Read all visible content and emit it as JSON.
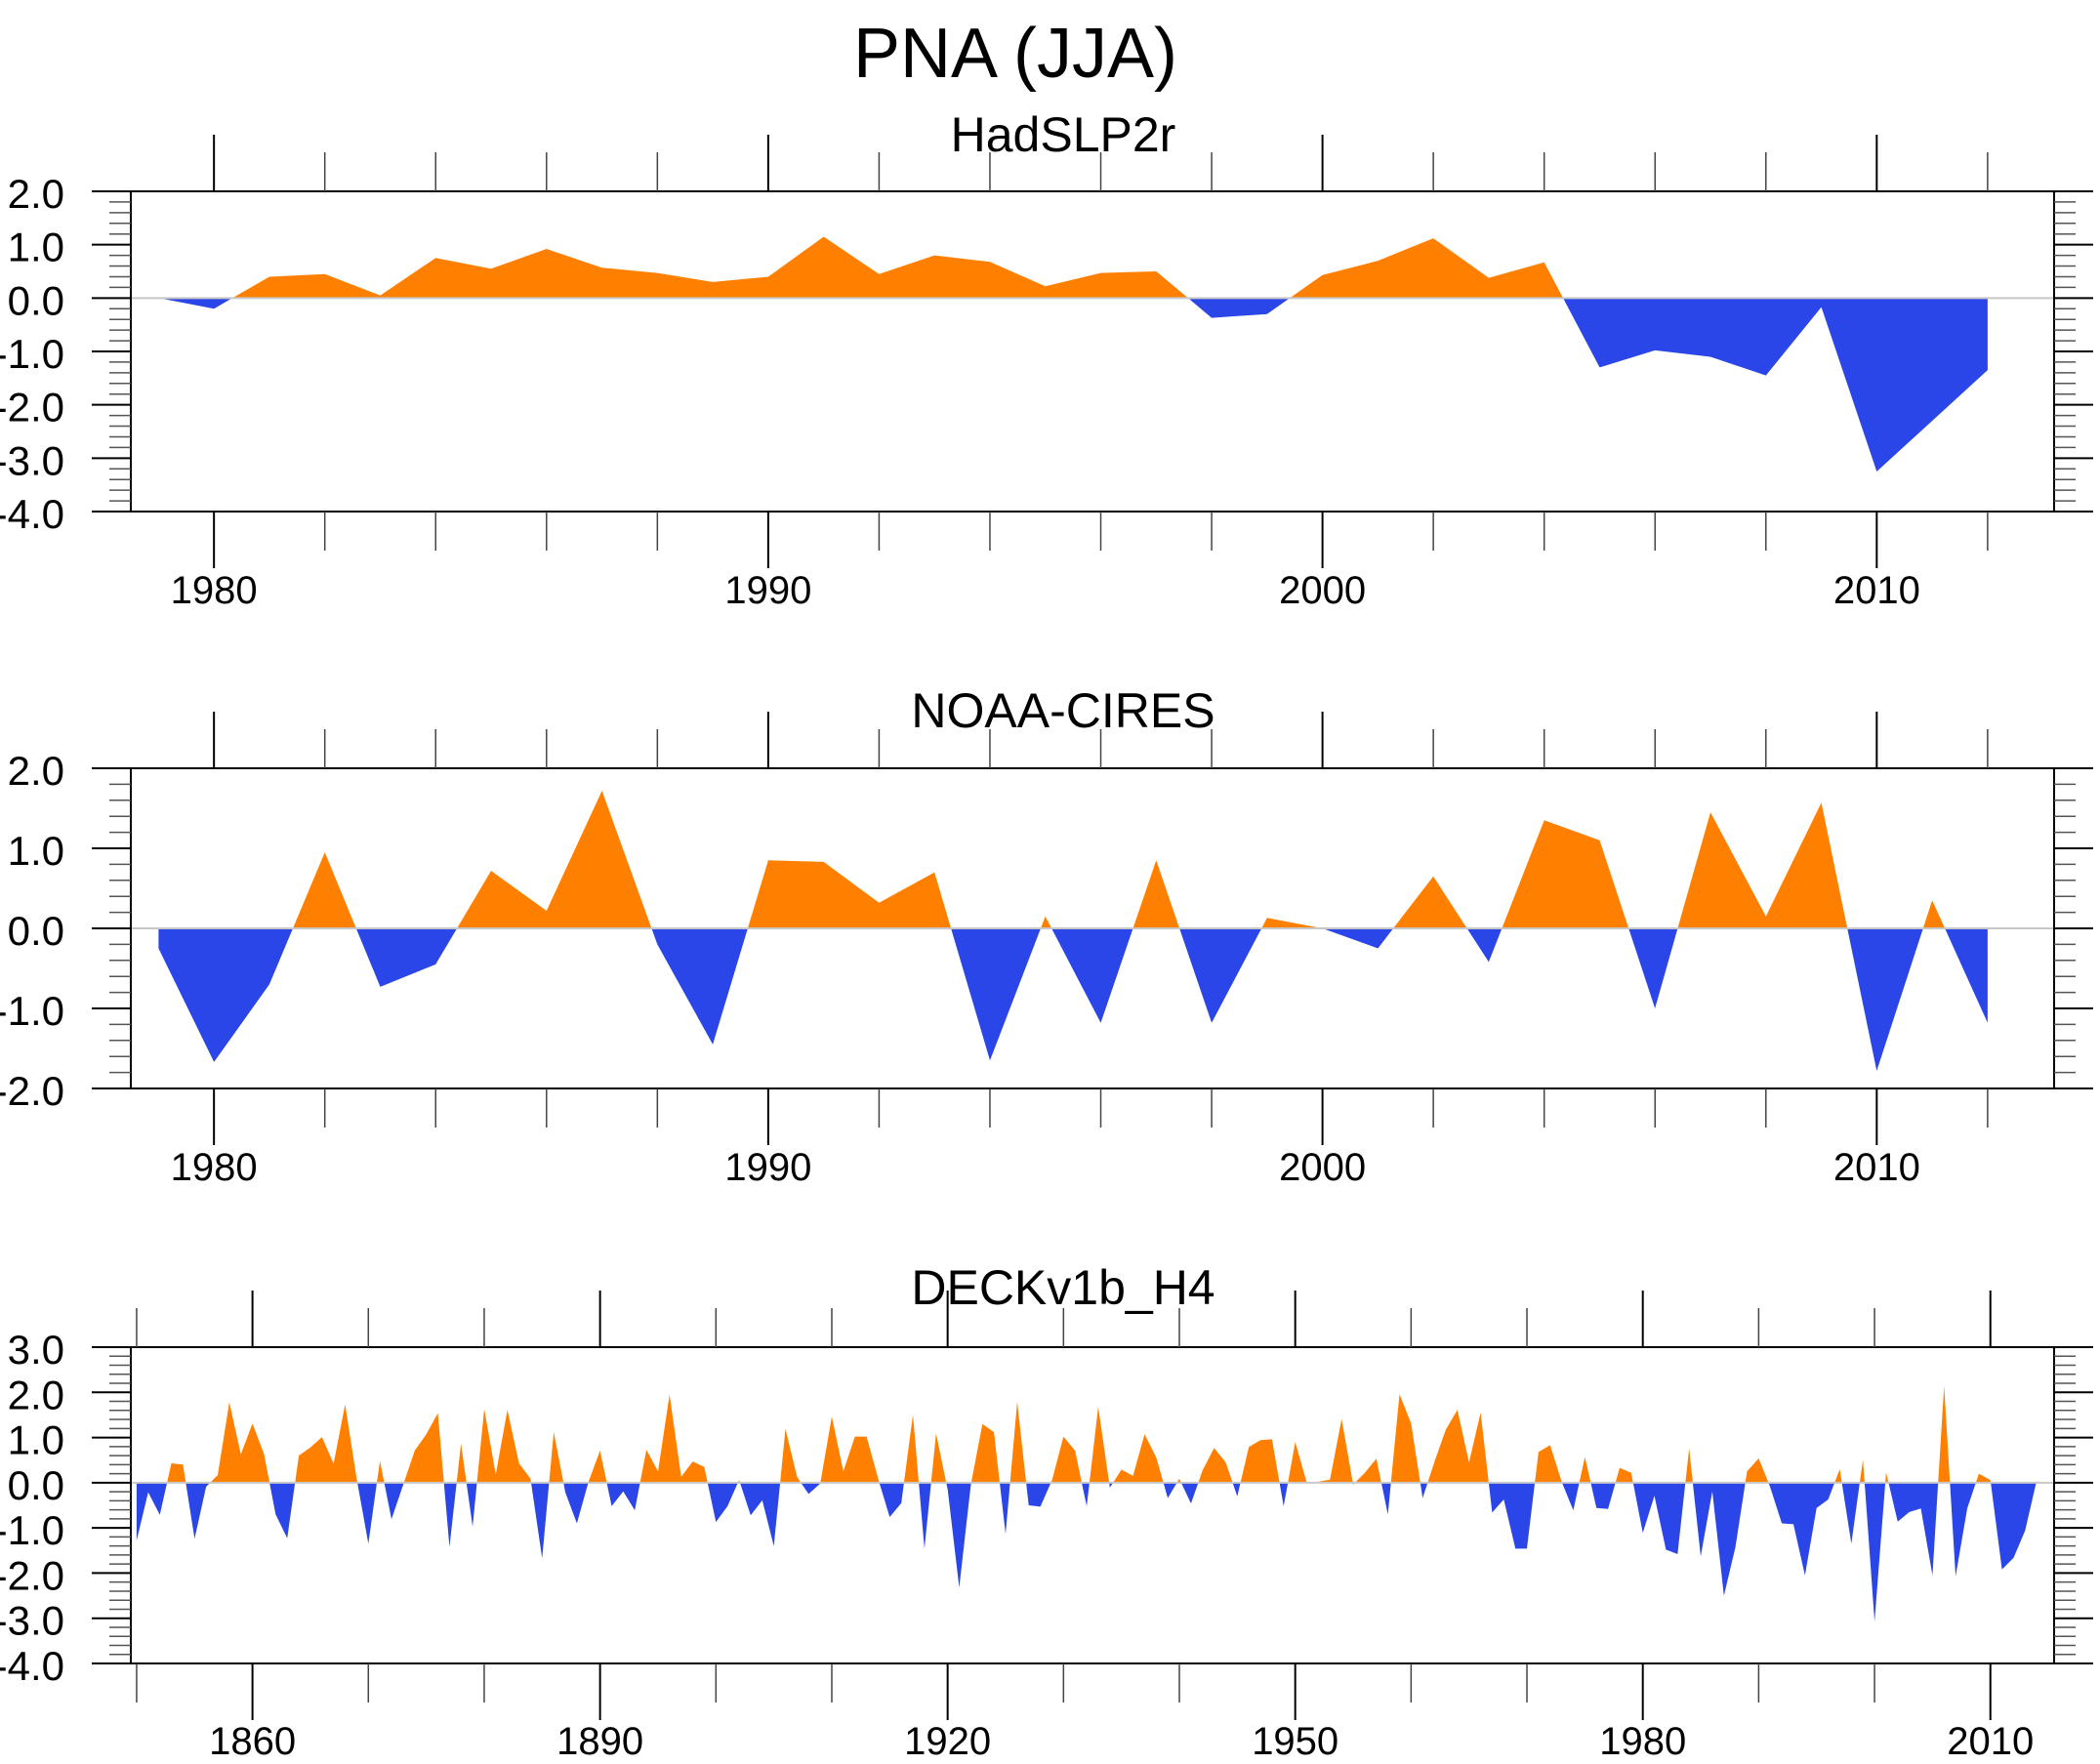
{
  "figure": {
    "title": "PNA (JJA)"
  },
  "colors": {
    "positive": "#FF8000",
    "negative": "#2A45E8",
    "zero_line": "#C8C8C8",
    "axis": "#000000"
  },
  "chart_data": [
    {
      "type": "area",
      "title": "HadSLP2r",
      "xlabel": "",
      "ylabel": "",
      "xlim": [
        1978.5,
        2013.2
      ],
      "ylim": [
        -4.0,
        2.0
      ],
      "yticks": [
        2.0,
        1.0,
        0.0,
        -1.0,
        -2.0,
        -3.0,
        -4.0
      ],
      "ytick_labels": [
        "2.0",
        "1.0",
        "0.0",
        "-1.0",
        "-2.0",
        "-3.0",
        "-4.0"
      ],
      "y_minor_step": 0.2,
      "xticks_major": [
        1980,
        1990,
        2000,
        2010
      ],
      "xtick_labels": [
        "1980",
        "1990",
        "2000",
        "2010"
      ],
      "x_minor_step": 2,
      "fill_above_zero": "orange",
      "fill_below_zero": "blue",
      "x": [
        1979,
        1980,
        1981,
        1982,
        1983,
        1984,
        1985,
        1986,
        1987,
        1988,
        1989,
        1990,
        1991,
        1992,
        1993,
        1994,
        1995,
        1996,
        1997,
        1998,
        1999,
        2000,
        2001,
        2002,
        2003,
        2004,
        2005,
        2006,
        2007,
        2008,
        2009,
        2010,
        2011,
        2012
      ],
      "values": [
        0.0,
        -0.2,
        0.4,
        0.45,
        0.05,
        0.75,
        0.55,
        0.92,
        0.57,
        0.47,
        0.3,
        0.4,
        1.15,
        0.45,
        0.8,
        0.68,
        0.22,
        0.47,
        0.5,
        -0.37,
        -0.3,
        0.43,
        0.7,
        1.12,
        0.38,
        0.67,
        -1.3,
        -0.98,
        -1.1,
        -1.45,
        -0.17,
        -3.25,
        -2.3,
        -1.35
      ]
    },
    {
      "type": "area",
      "title": "NOAA-CIRES",
      "xlabel": "",
      "ylabel": "",
      "xlim": [
        1978.5,
        2013.2
      ],
      "ylim": [
        -2.0,
        2.0
      ],
      "yticks": [
        2.0,
        1.0,
        0.0,
        -1.0,
        -2.0
      ],
      "ytick_labels": [
        "2.0",
        "1.0",
        "0.0",
        "-1.0",
        "-2.0"
      ],
      "y_minor_step": 0.2,
      "xticks_major": [
        1980,
        1990,
        2000,
        2010
      ],
      "xtick_labels": [
        "1980",
        "1990",
        "2000",
        "2010"
      ],
      "x_minor_step": 2,
      "fill_above_zero": "orange",
      "fill_below_zero": "blue",
      "x": [
        1979,
        1980,
        1981,
        1982,
        1983,
        1984,
        1985,
        1986,
        1987,
        1988,
        1989,
        1990,
        1991,
        1992,
        1993,
        1994,
        1995,
        1996,
        1997,
        1998,
        1999,
        2000,
        2001,
        2002,
        2003,
        2004,
        2005,
        2006,
        2007,
        2008,
        2009,
        2010,
        2011,
        2012
      ],
      "values": [
        -0.25,
        -1.67,
        -0.7,
        0.95,
        -0.73,
        -0.45,
        0.72,
        0.22,
        1.72,
        -0.2,
        -1.45,
        0.85,
        0.83,
        0.32,
        0.7,
        -1.65,
        0.15,
        -1.18,
        0.85,
        -1.18,
        0.13,
        0.0,
        -0.25,
        0.65,
        -0.42,
        1.35,
        1.1,
        -1.0,
        1.45,
        0.15,
        1.57,
        -1.78,
        0.35,
        -1.18
      ]
    },
    {
      "type": "area",
      "title": "DECKv1b_H4",
      "xlabel": "",
      "ylabel": "",
      "xlim": [
        1849.5,
        2015.5
      ],
      "ylim": [
        -4.0,
        3.0
      ],
      "yticks": [
        3.0,
        2.0,
        1.0,
        0.0,
        -1.0,
        -2.0,
        -3.0,
        -4.0
      ],
      "ytick_labels": [
        "3.0",
        "2.0",
        "1.0",
        "0.0",
        "-1.0",
        "-2.0",
        "-3.0",
        "-4.0"
      ],
      "y_minor_step": 0.2,
      "xticks_major": [
        1860,
        1890,
        1920,
        1950,
        1980,
        2010
      ],
      "xtick_labels": [
        "1860",
        "1890",
        "1920",
        "1950",
        "1980",
        "2010"
      ],
      "x_minor_step": 10,
      "fill_above_zero": "orange",
      "fill_below_zero": "blue",
      "x_start": 1850,
      "x_end": 2014,
      "values": [
        -1.28,
        -0.21,
        -0.71,
        0.43,
        0.4,
        -1.24,
        -0.09,
        0.17,
        1.78,
        0.63,
        1.31,
        0.63,
        -0.7,
        -1.23,
        0.6,
        0.78,
        1.01,
        0.42,
        1.73,
        0.08,
        -1.35,
        0.48,
        -0.81,
        -0.05,
        0.71,
        1.07,
        1.54,
        -1.42,
        0.87,
        -0.97,
        1.63,
        0.18,
        1.61,
        0.43,
        0.09,
        -1.67,
        1.12,
        -0.21,
        -0.9,
        0.02,
        0.71,
        -0.52,
        -0.19,
        -0.61,
        0.73,
        0.25,
        1.95,
        0.13,
        0.47,
        0.35,
        -0.87,
        -0.52,
        0.06,
        -0.72,
        -0.39,
        -1.4,
        1.19,
        0.13,
        -0.25,
        -0.02,
        1.46,
        0.25,
        1.02,
        1.02,
        0.09,
        -0.76,
        -0.45,
        1.5,
        -1.46,
        1.09,
        -0.15,
        -2.32,
        -0.05,
        1.3,
        1.12,
        -1.13,
        1.79,
        -0.5,
        -0.53,
        0.05,
        1.02,
        0.71,
        -0.52,
        1.68,
        -0.11,
        0.29,
        0.15,
        1.07,
        0.56,
        -0.34,
        0.09,
        -0.46,
        0.27,
        0.77,
        0.45,
        -0.3,
        0.79,
        0.94,
        0.96,
        -0.52,
        0.9,
        0.0,
        0.02,
        0.07,
        1.41,
        -0.04,
        0.22,
        0.53,
        -0.7,
        1.96,
        1.31,
        -0.34,
        0.45,
        1.18,
        1.61,
        0.45,
        1.55,
        -0.66,
        -0.37,
        -1.46,
        -1.46,
        0.68,
        0.83,
        0.02,
        -0.61,
        0.57,
        -0.56,
        -0.58,
        0.33,
        0.22,
        -1.11,
        -0.29,
        -1.48,
        -1.58,
        0.76,
        -1.63,
        -0.19,
        -2.5,
        -1.42,
        0.25,
        0.54,
        -0.1,
        -0.9,
        -0.92,
        -2.05,
        -0.56,
        -0.37,
        0.3,
        -1.35,
        0.51,
        -3.07,
        0.23,
        -0.86,
        -0.65,
        -0.57,
        -2.05,
        2.14,
        -2.07,
        -0.57,
        0.2,
        0.06,
        -1.92,
        -1.66,
        -1.06,
        0.06
      ]
    }
  ]
}
